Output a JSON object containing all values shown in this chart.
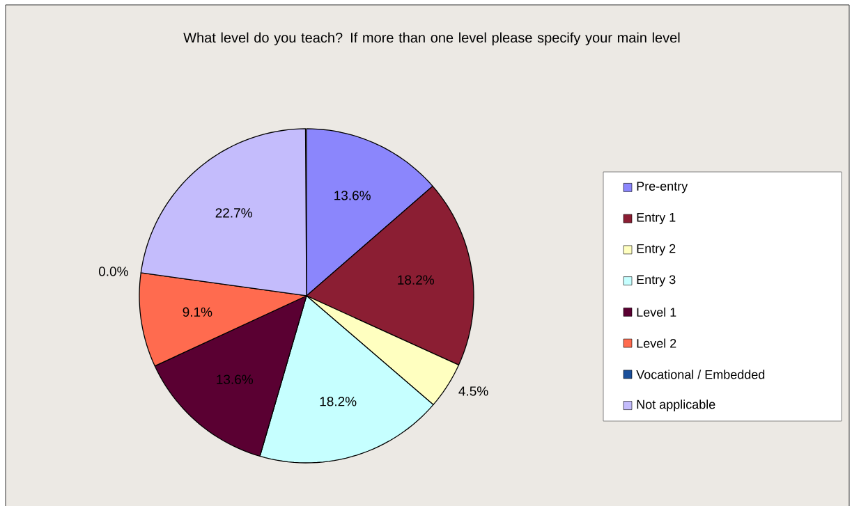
{
  "chart_data": {
    "type": "pie",
    "title": "What level do you teach?  If more than one level please specify your main level",
    "categories": [
      "Pre-entry",
      "Entry 1",
      "Entry 2",
      "Entry 3",
      "Level 1",
      "Level 2",
      "Vocational / Embedded",
      "Not applicable"
    ],
    "values": [
      13.6,
      18.2,
      4.5,
      18.2,
      13.6,
      9.1,
      0.0,
      22.7
    ],
    "colors": [
      "#8b86fc",
      "#8b1e33",
      "#ffffc0",
      "#c6ffff",
      "#5a0032",
      "#ff6b4f",
      "#1a4f9a",
      "#c4bcfc"
    ],
    "value_labels": [
      "13.6%",
      "18.2%",
      "4.5%",
      "18.2%",
      "13.6%",
      "9.1%",
      "0.0%",
      "22.7%"
    ],
    "legend": "right"
  }
}
